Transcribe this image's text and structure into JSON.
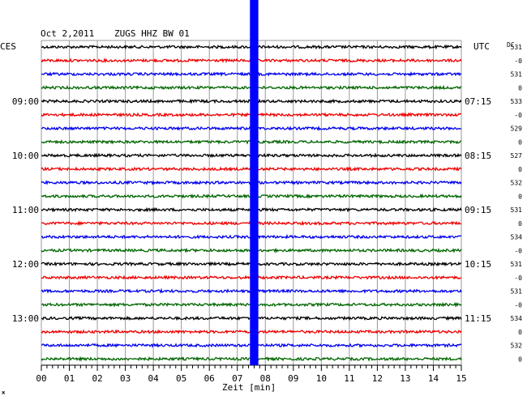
{
  "header": {
    "date": "Oct 2,2011",
    "station": "ZUGS HHZ BW 01",
    "left_tz": "CES",
    "right_tz": "UTC",
    "dc_label": "DC"
  },
  "chart_data": {
    "type": "line",
    "title": "",
    "xlabel": "Zeit [min]",
    "ylabel": "",
    "x_ticks": [
      "00",
      "01",
      "02",
      "03",
      "04",
      "05",
      "06",
      "07",
      "08",
      "09",
      "10",
      "11",
      "12",
      "13",
      "14",
      "15"
    ],
    "xlim": [
      0,
      15
    ],
    "grid": true,
    "row_colors": [
      "#000000",
      "#ee0000",
      "#0000ee",
      "#006600"
    ],
    "left_hour_labels": [
      {
        "row": 4,
        "label": "09:00"
      },
      {
        "row": 8,
        "label": "10:00"
      },
      {
        "row": 12,
        "label": "11:00"
      },
      {
        "row": 16,
        "label": "12:00"
      },
      {
        "row": 20,
        "label": "13:00"
      }
    ],
    "right_hour_labels": [
      {
        "row": 4,
        "label": "07:15"
      },
      {
        "row": 8,
        "label": "08:15"
      },
      {
        "row": 12,
        "label": "09:15"
      },
      {
        "row": 16,
        "label": "10:15"
      },
      {
        "row": 20,
        "label": "11:15"
      }
    ],
    "dc_values": [
      "531",
      "-0",
      "531",
      "0",
      "533",
      "-0",
      "529",
      "0",
      "527",
      "0",
      "532",
      "0",
      "531",
      "0",
      "534",
      "-0",
      "531",
      "-0",
      "531",
      "-0",
      "534",
      "0",
      "532",
      "0"
    ],
    "event": {
      "start_min": 7.45,
      "end_min": 7.75,
      "color": "#0000ff"
    }
  },
  "footer": {
    "corner_mark": "ж"
  }
}
